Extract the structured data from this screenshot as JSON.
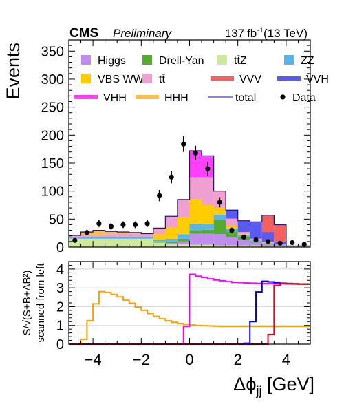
{
  "header": {
    "experiment": "CMS",
    "status": "Preliminary",
    "lumi": "137",
    "lumi_unit": "fb",
    "lumi_exp": "-1",
    "energy": "(13 TeV)"
  },
  "colors": {
    "Higgs": "#c08cf0",
    "Drell-Yan": "#55aa33",
    "ttZ": "#cde99b",
    "ZZ": "#5ab4e8",
    "VBS WW": "#ffcc00",
    "tt": "#f0a0d0",
    "VVV": "#f26060",
    "VVH": "#5a5af0",
    "VHH": "#ff40ff",
    "HHH": "#ffbe4a",
    "total": "#6a5acd",
    "data": "#000000",
    "scanVHH": "#ff00ff",
    "scanHHH": "#ffa000",
    "scanVVH": "#0000dd",
    "scanVVV": "#e8001c"
  },
  "chart_data": [
    {
      "type": "stacked-histogram",
      "panel": "upper",
      "ylabel": "Events",
      "ylim": [
        0,
        370
      ],
      "yticks": [
        0,
        50,
        100,
        150,
        200,
        250,
        300,
        350
      ],
      "xlim": [
        -5,
        5
      ],
      "bin_edges": [
        -5.0,
        -4.5,
        -4.0,
        -3.5,
        -3.0,
        -2.5,
        -2.0,
        -1.5,
        -1.0,
        -0.5,
        0.0,
        0.5,
        1.0,
        1.5,
        2.0,
        2.5,
        3.0,
        3.5,
        4.0,
        4.5,
        5.0
      ],
      "legend": [
        {
          "key": "Higgs",
          "label": "Higgs",
          "kind": "fill"
        },
        {
          "key": "Drell-Yan",
          "label": "Drell-Yan",
          "kind": "fill"
        },
        {
          "key": "ttZ",
          "label": "tt̄Z",
          "kind": "fill"
        },
        {
          "key": "ZZ",
          "label": "ZZ",
          "kind": "fill"
        },
        {
          "key": "VBS WW",
          "label": "VBS WW",
          "kind": "fill"
        },
        {
          "key": "tt",
          "label": "tt̄",
          "kind": "fill"
        },
        {
          "key": "VVV",
          "label": "VVV",
          "kind": "line"
        },
        {
          "key": "VVH",
          "label": "VVH",
          "kind": "line"
        },
        {
          "key": "VHH",
          "label": "VHH",
          "kind": "line"
        },
        {
          "key": "HHH",
          "label": "HHH",
          "kind": "line"
        },
        {
          "key": "total",
          "label": "total",
          "kind": "thin"
        },
        {
          "key": "data",
          "label": "Data",
          "kind": "marker"
        }
      ],
      "series": [
        {
          "name": "ttZ",
          "values": [
            15,
            15,
            15,
            15,
            15,
            15,
            15,
            8,
            5,
            5,
            4,
            4,
            3,
            3,
            3,
            3,
            2,
            2,
            1,
            1
          ]
        },
        {
          "name": "Higgs",
          "values": [
            0,
            0,
            0,
            0,
            0,
            0,
            0,
            0,
            2,
            5,
            20,
            20,
            20,
            15,
            10,
            5,
            3,
            2,
            1,
            1
          ]
        },
        {
          "name": "Drell-Yan",
          "values": [
            0,
            0,
            0,
            0,
            0,
            0,
            0,
            2,
            3,
            5,
            6,
            7,
            25,
            10,
            5,
            2,
            1,
            0,
            0,
            0
          ]
        },
        {
          "name": "ZZ",
          "values": [
            2,
            3,
            3,
            3,
            3,
            3,
            3,
            3,
            5,
            8,
            12,
            10,
            10,
            5,
            3,
            2,
            1,
            1,
            0,
            0
          ]
        },
        {
          "name": "VBS WW",
          "values": [
            0,
            0,
            0,
            0,
            0,
            0,
            0,
            10,
            20,
            30,
            43,
            34,
            12,
            5,
            2,
            0,
            0,
            0,
            0,
            0
          ]
        },
        {
          "name": "tt",
          "values": [
            4,
            4,
            4,
            5,
            6,
            6,
            6,
            11,
            20,
            32,
            40,
            50,
            30,
            13,
            4,
            3,
            2,
            0,
            0,
            0
          ]
        },
        {
          "name": "HHH",
          "values": [
            0,
            5,
            8,
            5,
            3,
            2,
            0,
            0,
            0,
            0,
            0,
            0,
            0,
            0,
            0,
            0,
            0,
            0,
            0,
            0
          ]
        },
        {
          "name": "VHH",
          "values": [
            0,
            0,
            0,
            0,
            0,
            0,
            0,
            0,
            0,
            0,
            47,
            38,
            0,
            0,
            0,
            0,
            0,
            0,
            0,
            0
          ]
        },
        {
          "name": "VVH",
          "values": [
            0,
            0,
            0,
            0,
            0,
            0,
            0,
            0,
            0,
            0,
            0,
            0,
            0,
            15,
            20,
            30,
            18,
            5,
            0,
            0
          ]
        },
        {
          "name": "VVV",
          "values": [
            0,
            0,
            0,
            0,
            0,
            0,
            0,
            0,
            0,
            0,
            0,
            0,
            0,
            0,
            0,
            0,
            30,
            30,
            0,
            0
          ]
        }
      ],
      "data_points": {
        "x": [
          -4.75,
          -4.25,
          -3.75,
          -3.25,
          -2.75,
          -2.25,
          -1.75,
          -1.25,
          -0.75,
          -0.25,
          0.25,
          0.75,
          1.25,
          1.75,
          2.25,
          2.75,
          3.25,
          3.75,
          4.25,
          4.75
        ],
        "y": [
          12,
          26,
          42,
          37,
          40,
          40,
          42,
          92,
          125,
          184,
          168,
          140,
          80,
          30,
          18,
          13,
          10,
          7,
          8,
          5
        ],
        "err": [
          3,
          5,
          6,
          6,
          6,
          6,
          6,
          10,
          11,
          14,
          13,
          12,
          9,
          5,
          4,
          4,
          3,
          3,
          3,
          2
        ]
      }
    },
    {
      "type": "line",
      "panel": "lower",
      "ylabel_line1": "S/√(S+B+ΔB²)",
      "ylabel_line2": "scanned from left",
      "xlabel": "Δϕjj [GeV]",
      "xlabel_main": "Δϕ",
      "xlabel_sub": "jj",
      "xlabel_unit": " [GeV]",
      "xlim": [
        -5,
        5
      ],
      "ylim": [
        0,
        4.4
      ],
      "yticks": [
        0,
        1,
        2,
        3,
        4
      ],
      "xticks": [
        -4,
        -2,
        0,
        2,
        4
      ],
      "xtick_labels": [
        "−4",
        "−2",
        "0",
        "2",
        "4"
      ],
      "step": 0.25,
      "x": [
        -5.0,
        -4.75,
        -4.5,
        -4.25,
        -4.0,
        -3.75,
        -3.5,
        -3.25,
        -3.0,
        -2.75,
        -2.5,
        -2.25,
        -2.0,
        -1.75,
        -1.5,
        -1.25,
        -1.0,
        -0.75,
        -0.5,
        -0.25,
        0.0,
        0.25,
        0.5,
        0.75,
        1.0,
        1.25,
        1.5,
        1.75,
        2.0,
        2.25,
        2.5,
        2.75,
        3.0,
        3.25,
        3.5,
        3.75,
        4.0,
        4.25,
        4.5,
        4.75
      ],
      "series": [
        {
          "name": "HHH",
          "values": [
            0,
            0,
            0.25,
            1.25,
            2.15,
            2.8,
            2.75,
            2.65,
            2.52,
            2.35,
            2.18,
            1.98,
            1.8,
            1.63,
            1.48,
            1.35,
            1.25,
            1.17,
            1.1,
            1.05,
            1.02,
            1.0,
            0.98,
            0.97,
            0.96,
            0.95,
            0.95,
            0.95,
            0.95,
            0.95,
            0.95,
            0.95,
            0.95,
            0.95,
            0.95,
            0.95,
            0.95,
            0.95,
            0.95,
            0.95
          ]
        },
        {
          "name": "VHH",
          "values": [
            0,
            0,
            0,
            0,
            0,
            0,
            0,
            0,
            0,
            0,
            0,
            0,
            0,
            0,
            0,
            0,
            0,
            0,
            0,
            0.95,
            3.72,
            3.62,
            3.55,
            3.48,
            3.42,
            3.38,
            3.33,
            3.3,
            3.28,
            3.26,
            3.25,
            3.24,
            3.23,
            3.23,
            3.22,
            3.22,
            3.21,
            3.21,
            3.2,
            3.2
          ]
        },
        {
          "name": "VVH",
          "values": [
            0,
            0,
            0,
            0,
            0,
            0,
            0,
            0,
            0,
            0,
            0,
            0,
            0,
            0,
            0,
            0,
            0,
            0,
            0,
            0,
            0,
            0,
            0,
            0,
            0,
            0,
            0,
            0,
            0,
            0.05,
            1.2,
            2.78,
            3.35,
            3.32,
            3.28,
            3.25,
            3.23,
            3.21,
            3.2,
            3.2
          ]
        },
        {
          "name": "VVV",
          "values": [
            0,
            0,
            0,
            0,
            0,
            0,
            0,
            0,
            0,
            0,
            0,
            0,
            0,
            0,
            0,
            0,
            0,
            0,
            0,
            0,
            0,
            0,
            0,
            0,
            0,
            0,
            0,
            0,
            0,
            0,
            0,
            0,
            0,
            0.52,
            3.12,
            3.24,
            3.23,
            3.22,
            3.21,
            3.21
          ]
        }
      ]
    }
  ]
}
